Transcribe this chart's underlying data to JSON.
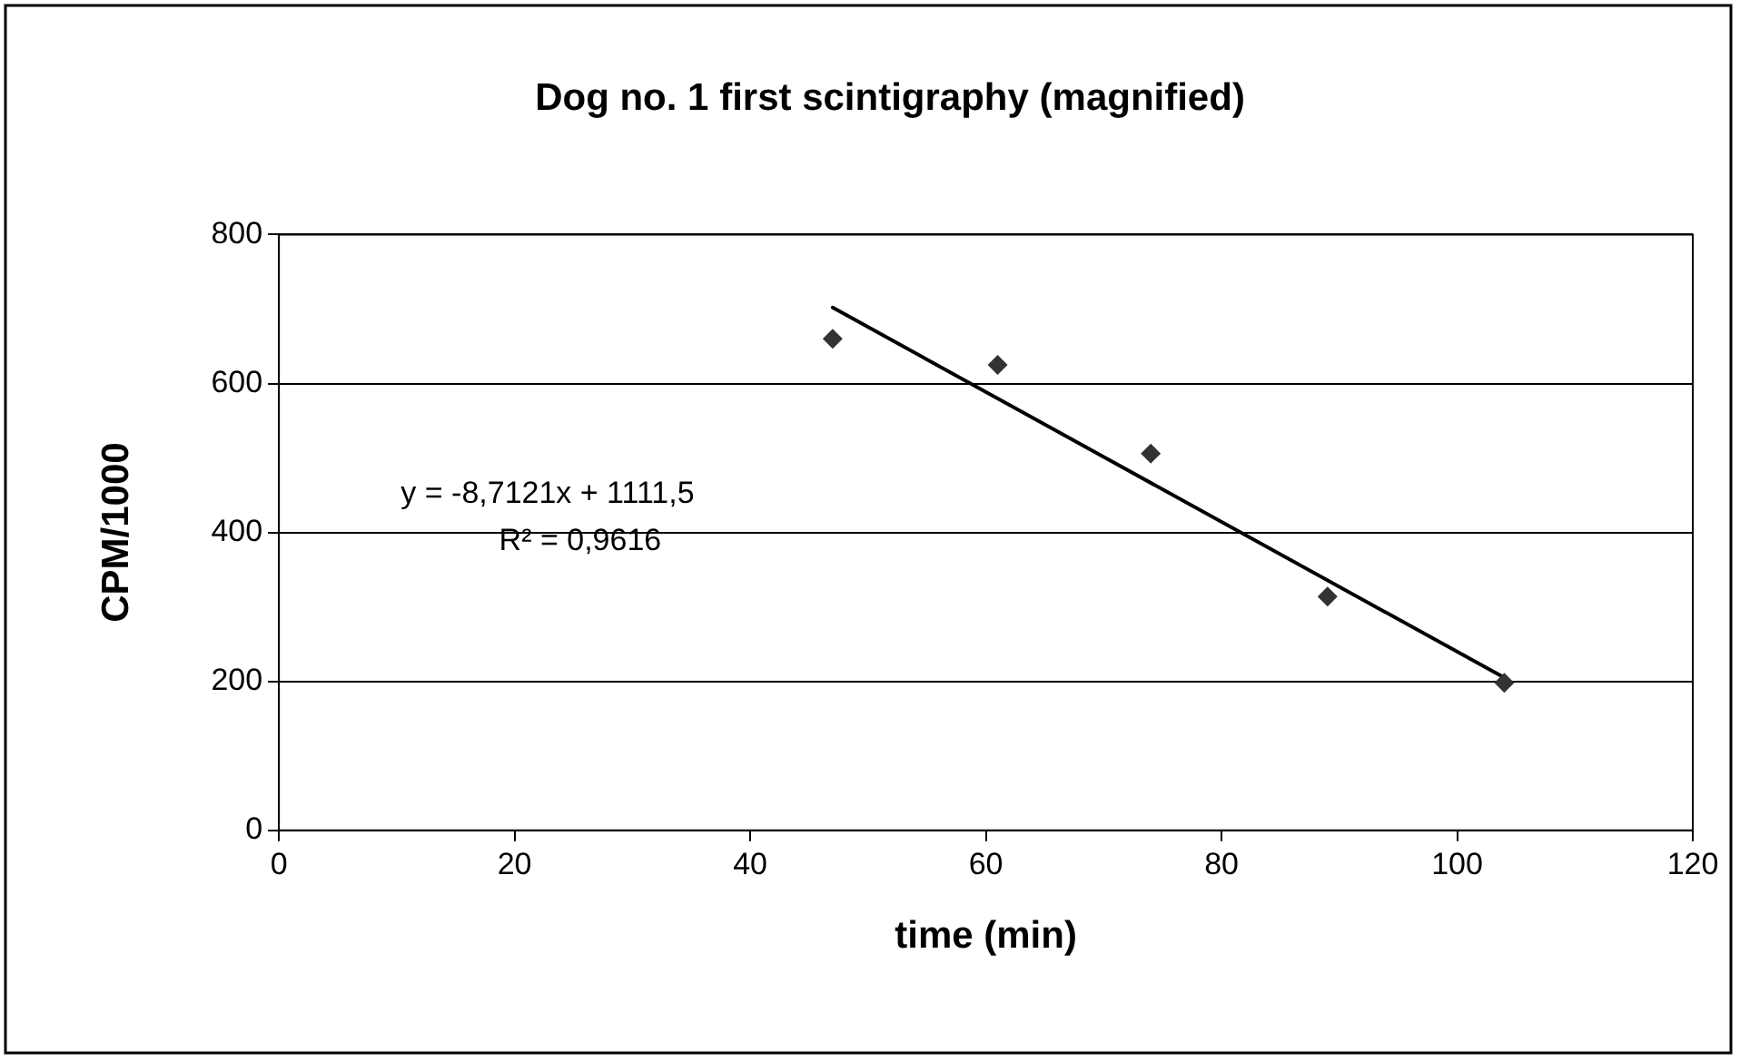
{
  "chart_data": {
    "type": "scatter",
    "title": "Dog no. 1 first scintigraphy (magnified)",
    "xlabel": "time (min)",
    "ylabel": "CPM/1000",
    "x": [
      47,
      61,
      74,
      89,
      104
    ],
    "series": [
      {
        "color": "#333333",
        "values": [
          660,
          625,
          506,
          314,
          198
        ],
        "marker": "diamond"
      },
      {
        "type": "line",
        "x": [
          47,
          104
        ],
        "color": "#000000",
        "values": [
          702,
          205
        ],
        "marker": "none"
      }
    ],
    "xlim": [
      0,
      120
    ],
    "xticks": [
      0,
      20,
      40,
      60,
      80,
      100,
      120
    ],
    "ylim": [
      0,
      800
    ],
    "yticks": [
      0,
      200,
      400,
      600,
      800
    ],
    "grid": "y",
    "legend": false,
    "annotations": [
      "y = -8,7121x + 1111,5",
      "R² = 0,9616"
    ]
  }
}
